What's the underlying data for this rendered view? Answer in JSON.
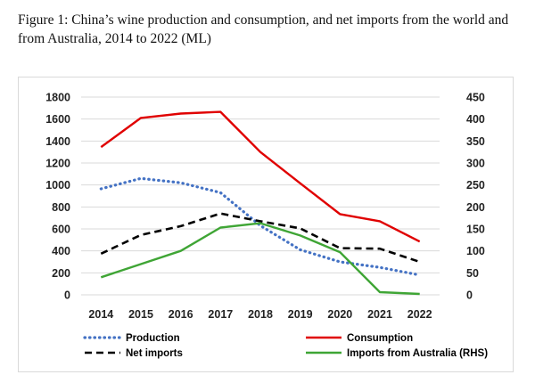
{
  "caption": "Figure 1: China’s wine production and consumption, and net imports from the world and from Australia, 2014 to 2022 (ML)",
  "chart_data": {
    "type": "line",
    "title": "Figure 1: China’s wine production and consumption, and net imports from the world and from Australia, 2014 to 2022 (ML)",
    "categories": [
      "2014",
      "2015",
      "2016",
      "2017",
      "2018",
      "2019",
      "2020",
      "2021",
      "2022"
    ],
    "y_left": {
      "range": [
        0,
        1800
      ],
      "ticks": [
        0,
        200,
        400,
        600,
        800,
        1000,
        1200,
        1400,
        1600,
        1800
      ]
    },
    "y_right": {
      "range": [
        0,
        450
      ],
      "ticks": [
        0,
        50,
        100,
        150,
        200,
        250,
        300,
        350,
        400,
        450
      ]
    },
    "grid": true,
    "legend_position": "bottom",
    "series": [
      {
        "name": "Production",
        "axis": "left",
        "color": "#4472c4",
        "style": "dotted",
        "values": [
          965,
          1060,
          1020,
          930,
          630,
          410,
          300,
          250,
          180
        ]
      },
      {
        "name": "Consumption",
        "axis": "left",
        "color": "#e00000",
        "style": "solid",
        "values": [
          1345,
          1610,
          1650,
          1665,
          1300,
          1015,
          735,
          670,
          485
        ]
      },
      {
        "name": "Net imports",
        "axis": "left",
        "color": "#000000",
        "style": "dashed",
        "values": [
          375,
          545,
          625,
          740,
          670,
          605,
          425,
          420,
          300
        ]
      },
      {
        "name": "Imports from Australia (RHS)",
        "axis": "right",
        "color": "#3fa535",
        "style": "solid",
        "values": [
          40,
          70,
          100,
          153,
          163,
          135,
          97,
          6,
          2
        ]
      }
    ]
  }
}
